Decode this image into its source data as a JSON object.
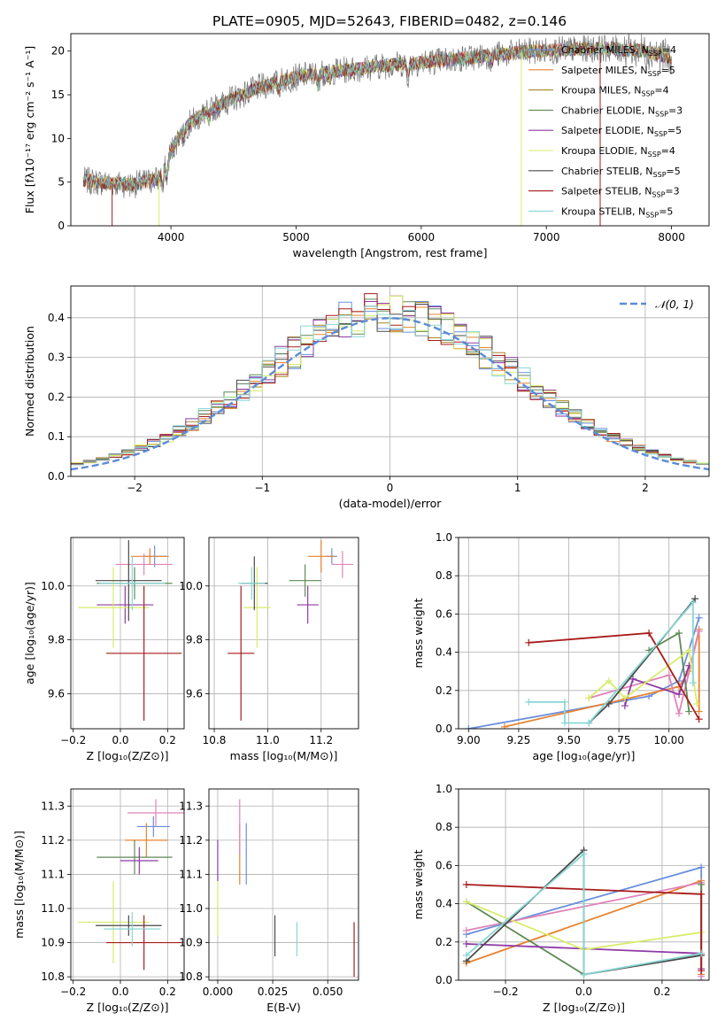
{
  "figure_title": "PLATE=0905, MJD=52643, FIBERID=0482, z=0.146",
  "colors": {
    "Chabrier MILES": "#6a8fdc",
    "Salpeter MILES": "#e8832f",
    "Kroupa MILES": "#a88a25",
    "Chabrier ELODIE": "#5e8a56",
    "Salpeter ELODIE": "#8f3aa6",
    "Kroupa ELODIE": "#d8ec6a",
    "Chabrier STELIB": "#4a4a4a",
    "Salpeter STELIB": "#a81b1b",
    "Kroupa STELIB": "#8ad6d6",
    "Kroupa MILES w": "#e084b8",
    "gauss": "#5b8bd8"
  },
  "chart_data": [
    {
      "id": "spectrum",
      "type": "line",
      "title": "PLATE=0905, MJD=52643, FIBERID=0482, z=0.146",
      "xlabel": "wavelength [Angstrom, rest frame]",
      "ylabel": "Flux [fλ10⁻¹⁷ erg cm⁻² s⁻¹ A⁻¹]",
      "xlim": [
        3200,
        8300
      ],
      "ylim": [
        0,
        22
      ],
      "xticks": [
        4000,
        5000,
        6000,
        7000,
        8000
      ],
      "yticks": [
        0,
        5,
        10,
        15,
        20
      ],
      "legend_position": "top-right",
      "series": [
        {
          "name": "Chabrier MILES, N_SSP=4",
          "label_main": "Chabrier MILES, N",
          "label_sub": "SSP",
          "label_tail": "=4"
        },
        {
          "name": "Salpeter MILES, N_SSP=5",
          "label_main": "Salpeter MILES, N",
          "label_sub": "SSP",
          "label_tail": "=5"
        },
        {
          "name": "Kroupa MILES, N_SSP=4",
          "label_main": "Kroupa MILES, N",
          "label_sub": "SSP",
          "label_tail": "=4"
        },
        {
          "name": "Chabrier ELODIE, N_SSP=3",
          "label_main": "Chabrier ELODIE, N",
          "label_sub": "SSP",
          "label_tail": "=3"
        },
        {
          "name": "Salpeter ELODIE, N_SSP=5",
          "label_main": "Salpeter ELODIE, N",
          "label_sub": "SSP",
          "label_tail": "=5"
        },
        {
          "name": "Kroupa ELODIE, N_SSP=4",
          "label_main": "Kroupa ELODIE, N",
          "label_sub": "SSP",
          "label_tail": "=4"
        },
        {
          "name": "Chabrier STELIB, N_SSP=5",
          "label_main": "Chabrier STELIB, N",
          "label_sub": "SSP",
          "label_tail": "=5"
        },
        {
          "name": "Salpeter STELIB, N_SSP=3",
          "label_main": "Salpeter STELIB, N",
          "label_sub": "SSP",
          "label_tail": "=3"
        },
        {
          "name": "Kroupa STELIB, N_SSP=5",
          "label_main": "Kroupa STELIB, N",
          "label_sub": "SSP",
          "label_tail": "=5"
        }
      ],
      "continuum": {
        "x": [
          3300,
          3500,
          3700,
          3900,
          4000,
          4100,
          4300,
          4500,
          4700,
          4900,
          5100,
          5300,
          5500,
          5800,
          6000,
          6300,
          6600,
          6900,
          7200,
          7500,
          7800,
          8000
        ],
        "y": [
          5.2,
          4.9,
          4.7,
          5.4,
          8.5,
          11.2,
          13.2,
          14.6,
          15.8,
          16.7,
          17.3,
          17.7,
          18.0,
          18.5,
          18.7,
          19.1,
          19.6,
          20.0,
          20.2,
          20.3,
          20.0,
          19.2
        ]
      },
      "absorption_lines": [
        {
          "x": 3934,
          "depth": 2.0
        },
        {
          "x": 3968,
          "depth": 1.8
        },
        {
          "x": 4101,
          "depth": 1.0
        },
        {
          "x": 4304,
          "depth": 1.2
        },
        {
          "x": 4861,
          "depth": 0.8
        },
        {
          "x": 5175,
          "depth": 1.4
        },
        {
          "x": 5270,
          "depth": 0.8
        },
        {
          "x": 5894,
          "depth": 1.4
        },
        {
          "x": 6563,
          "depth": 0.6
        }
      ],
      "drops": [
        {
          "x": 3530
        },
        {
          "x": 3905
        },
        {
          "x": 6800
        },
        {
          "x": 7430
        }
      ]
    },
    {
      "id": "residuals",
      "type": "histogram",
      "xlabel": "(data-model)/error",
      "ylabel": "Normed distribution",
      "xlim": [
        -2.5,
        2.5
      ],
      "ylim": [
        0,
        0.48
      ],
      "xticks": [
        -2,
        -1,
        0,
        1,
        2
      ],
      "xtick_labels": [
        "−2",
        "−1",
        "0",
        "1",
        "2"
      ],
      "yticks": [
        0.0,
        0.1,
        0.2,
        0.3,
        0.4
      ],
      "bin_width": 0.1,
      "legend_label": "𝒩(0, 1)",
      "legend_position": "top-right",
      "gaussian": {
        "mean": 0,
        "sigma": 1
      }
    },
    {
      "id": "z-age",
      "type": "errorbar",
      "xlabel": "Z [log₁₀(Z/Z⊙)]",
      "ylabel": "age  [log₁₀(age/yr)]",
      "xlim": [
        -0.21,
        0.27
      ],
      "ylim": [
        9.47,
        10.18
      ],
      "xticks": [
        -0.2,
        0.0,
        0.2
      ],
      "xtick_labels": [
        "−0.2",
        "0.0",
        "0.2"
      ],
      "yticks": [
        9.6,
        9.8,
        10.0
      ],
      "points": [
        {
          "series": "Chabrier MILES",
          "x": 0.145,
          "y": 10.11,
          "xerr": 0.05,
          "yerr": 0.04
        },
        {
          "series": "Salpeter MILES",
          "x": 0.125,
          "y": 10.11,
          "xerr": 0.08,
          "yerr": 0.03
        },
        {
          "series": "Kroupa MILES w",
          "x": 0.1,
          "y": 10.08,
          "xerr": 0.12,
          "yerr": 0.04
        },
        {
          "series": "Chabrier ELODIE",
          "x": 0.06,
          "y": 10.01,
          "xerr": 0.16,
          "yerr": 0.06
        },
        {
          "series": "Salpeter ELODIE",
          "x": 0.02,
          "y": 9.93,
          "xerr": 0.12,
          "yerr": 0.07
        },
        {
          "series": "Kroupa ELODIE",
          "x": -0.03,
          "y": 9.92,
          "xerr": 0.15,
          "yerr": 0.15
        },
        {
          "series": "Chabrier STELIB",
          "x": 0.035,
          "y": 10.02,
          "xerr": 0.14,
          "yerr": 0.15
        },
        {
          "series": "Salpeter STELIB",
          "x": 0.1,
          "y": 9.75,
          "xerr": 0.16,
          "yerr": 0.25
        },
        {
          "series": "Kroupa STELIB",
          "x": 0.05,
          "y": 10.01,
          "xerr": 0.14,
          "yerr": 0.1
        }
      ]
    },
    {
      "id": "mass-age",
      "type": "errorbar",
      "xlabel": "mass [log₁₀(M/M⊙)]",
      "ylabel": "",
      "xlim": [
        10.78,
        11.34
      ],
      "ylim": [
        9.47,
        10.18
      ],
      "xticks": [
        10.8,
        11.0,
        11.2
      ],
      "xtick_labels": [
        "10.8",
        "11.0",
        "11.2"
      ],
      "yticks": [
        9.6,
        9.8,
        10.0
      ],
      "points": [
        {
          "series": "Chabrier MILES",
          "x": 11.24,
          "y": 10.11,
          "xerr": 0.02,
          "yerr": 0.03
        },
        {
          "series": "Salpeter MILES",
          "x": 11.2,
          "y": 10.11,
          "xerr": 0.05,
          "yerr": 0.06
        },
        {
          "series": "Kroupa MILES w",
          "x": 11.28,
          "y": 10.08,
          "xerr": 0.04,
          "yerr": 0.05
        },
        {
          "series": "Chabrier ELODIE",
          "x": 11.14,
          "y": 10.02,
          "xerr": 0.06,
          "yerr": 0.06
        },
        {
          "series": "Salpeter ELODIE",
          "x": 11.15,
          "y": 9.93,
          "xerr": 0.04,
          "yerr": 0.07
        },
        {
          "series": "Kroupa ELODIE",
          "x": 10.96,
          "y": 9.92,
          "xerr": 0.05,
          "yerr": 0.15
        },
        {
          "series": "Chabrier STELIB",
          "x": 10.95,
          "y": 10.01,
          "xerr": 0.05,
          "yerr": 0.1
        },
        {
          "series": "Salpeter STELIB",
          "x": 10.9,
          "y": 9.75,
          "xerr": 0.05,
          "yerr": 0.25
        },
        {
          "series": "Kroupa STELIB",
          "x": 10.94,
          "y": 10.01,
          "xerr": 0.05,
          "yerr": 0.06
        }
      ]
    },
    {
      "id": "age-weight",
      "type": "line",
      "xlabel": "age  [log₁₀(age/yr)]",
      "ylabel": "mass weight",
      "xlim": [
        8.95,
        10.2
      ],
      "ylim": [
        0,
        1.0
      ],
      "xticks": [
        9.0,
        9.25,
        9.5,
        9.75,
        10.0
      ],
      "xtick_labels": [
        "9.00",
        "9.25",
        "9.50",
        "9.75",
        "10.00"
      ],
      "yticks": [
        0.0,
        0.2,
        0.4,
        0.6,
        0.8,
        1.0
      ],
      "series": [
        {
          "series": "Chabrier MILES",
          "x": [
            9.0,
            9.9,
            10.05,
            10.15
          ],
          "y": [
            0.0,
            0.17,
            0.25,
            0.58
          ]
        },
        {
          "series": "Salpeter MILES",
          "x": [
            9.18,
            10.05,
            10.1,
            10.15,
            10.15
          ],
          "y": [
            0.01,
            0.22,
            0.3,
            0.52,
            0.09
          ]
        },
        {
          "series": "Kroupa MILES w",
          "x": [
            9.6,
            10.0,
            10.05,
            10.15
          ],
          "y": [
            0.16,
            0.28,
            0.08,
            0.51
          ]
        },
        {
          "series": "Chabrier ELODIE",
          "x": [
            9.9,
            10.05,
            10.1
          ],
          "y": [
            0.41,
            0.5,
            0.09
          ]
        },
        {
          "series": "Salpeter ELODIE",
          "x": [
            9.78,
            9.82,
            10.05,
            10.1
          ],
          "y": [
            0.12,
            0.26,
            0.18,
            0.33
          ]
        },
        {
          "series": "Kroupa ELODIE",
          "x": [
            9.6,
            9.7,
            9.78,
            10.1,
            10.14
          ],
          "y": [
            0.16,
            0.25,
            0.16,
            0.41,
            0.13
          ]
        },
        {
          "series": "Chabrier STELIB",
          "x": [
            9.6,
            9.7,
            10.13
          ],
          "y": [
            0.03,
            0.13,
            0.68
          ]
        },
        {
          "series": "Salpeter STELIB",
          "x": [
            9.3,
            9.9,
            10.15
          ],
          "y": [
            0.45,
            0.5,
            0.05
          ]
        },
        {
          "series": "Kroupa STELIB",
          "x": [
            9.3,
            9.48,
            9.48,
            9.6,
            9.6,
            10.12,
            10.12
          ],
          "y": [
            0.14,
            0.14,
            0.03,
            0.03,
            0.03,
            0.66,
            0.24
          ]
        }
      ]
    },
    {
      "id": "z-mass",
      "type": "errorbar",
      "xlabel": "Z [log₁₀(Z/Z⊙)]",
      "ylabel": "mass [log₁₀(M/M⊙)]",
      "xlim": [
        -0.21,
        0.27
      ],
      "ylim": [
        10.79,
        11.35
      ],
      "xticks": [
        -0.2,
        0.0,
        0.2
      ],
      "xtick_labels": [
        "−0.2",
        "0.0",
        "0.2"
      ],
      "yticks": [
        10.8,
        10.9,
        11.0,
        11.1,
        11.2,
        11.3
      ],
      "points": [
        {
          "series": "Chabrier MILES",
          "x": 0.14,
          "y": 11.24,
          "xerr": 0.07,
          "yerr": 0.03
        },
        {
          "series": "Salpeter MILES",
          "x": 0.11,
          "y": 11.2,
          "xerr": 0.09,
          "yerr": 0.05
        },
        {
          "series": "Kroupa MILES w",
          "x": 0.15,
          "y": 11.28,
          "xerr": 0.12,
          "yerr": 0.04
        },
        {
          "series": "Chabrier ELODIE",
          "x": 0.06,
          "y": 11.15,
          "xerr": 0.16,
          "yerr": 0.05
        },
        {
          "series": "Salpeter ELODIE",
          "x": 0.08,
          "y": 11.14,
          "xerr": 0.08,
          "yerr": 0.04
        },
        {
          "series": "Kroupa ELODIE",
          "x": -0.03,
          "y": 10.96,
          "xerr": 0.15,
          "yerr": 0.12
        },
        {
          "series": "Chabrier STELIB",
          "x": 0.035,
          "y": 10.95,
          "xerr": 0.14,
          "yerr": 0.03
        },
        {
          "series": "Salpeter STELIB",
          "x": 0.1,
          "y": 10.9,
          "xerr": 0.16,
          "yerr": 0.08
        },
        {
          "series": "Kroupa STELIB",
          "x": 0.05,
          "y": 10.94,
          "xerr": 0.12,
          "yerr": 0.05
        }
      ]
    },
    {
      "id": "ebv-mass",
      "type": "errorbar",
      "xlabel": "E(B-V)",
      "ylabel": "",
      "xlim": [
        -0.004,
        0.064
      ],
      "ylim": [
        10.79,
        11.35
      ],
      "xticks": [
        0.0,
        0.025,
        0.05
      ],
      "xtick_labels": [
        "0.000",
        "0.025",
        "0.050"
      ],
      "yticks": [
        10.8,
        10.9,
        11.0,
        11.1,
        11.2,
        11.3
      ],
      "points": [
        {
          "series": "Chabrier MILES",
          "x": 0.013,
          "y": 11.16,
          "xerr": 0,
          "yerr": 0.09
        },
        {
          "series": "Salpeter MILES",
          "x": 0.01,
          "y": 11.16,
          "xerr": 0,
          "yerr": 0.09
        },
        {
          "series": "Kroupa MILES w",
          "x": 0.01,
          "y": 11.24,
          "xerr": 0,
          "yerr": 0.08
        },
        {
          "series": "Salpeter ELODIE",
          "x": 0.0,
          "y": 11.14,
          "xerr": 0,
          "yerr": 0.06
        },
        {
          "series": "Kroupa ELODIE",
          "x": 0.0,
          "y": 11.0,
          "xerr": 0,
          "yerr": 0.08
        },
        {
          "series": "Chabrier STELIB",
          "x": 0.026,
          "y": 10.92,
          "xerr": 0,
          "yerr": 0.06
        },
        {
          "series": "Kroupa STELIB",
          "x": 0.036,
          "y": 10.91,
          "xerr": 0,
          "yerr": 0.05
        },
        {
          "series": "Salpeter STELIB",
          "x": 0.062,
          "y": 10.88,
          "xerr": 0,
          "yerr": 0.08
        }
      ]
    },
    {
      "id": "z-weight",
      "type": "line",
      "xlabel": "Z [log₁₀(Z/Z⊙)]",
      "ylabel": "mass weight",
      "xlim": [
        -0.32,
        0.32
      ],
      "ylim": [
        0,
        1.0
      ],
      "xticks": [
        -0.2,
        0.0,
        0.2
      ],
      "xtick_labels": [
        "−0.2",
        "0.0",
        "0.2"
      ],
      "yticks": [
        0.0,
        0.2,
        0.4,
        0.6,
        0.8,
        1.0
      ],
      "series": [
        {
          "series": "Chabrier MILES",
          "x": [
            -0.3,
            0.3,
            0.3
          ],
          "y": [
            0.24,
            0.59,
            0.0
          ]
        },
        {
          "series": "Salpeter MILES",
          "x": [
            -0.3,
            0.3,
            0.3
          ],
          "y": [
            0.09,
            0.52,
            0.03
          ]
        },
        {
          "series": "Kroupa MILES w",
          "x": [
            -0.3,
            0.3,
            0.3
          ],
          "y": [
            0.26,
            0.51,
            0.02
          ]
        },
        {
          "series": "Chabrier ELODIE",
          "x": [
            -0.3,
            0.0,
            0.3,
            0.3
          ],
          "y": [
            0.41,
            0.03,
            0.13,
            0.5
          ]
        },
        {
          "series": "Salpeter ELODIE",
          "x": [
            -0.3,
            0.3,
            0.3
          ],
          "y": [
            0.19,
            0.14,
            0.06
          ]
        },
        {
          "series": "Kroupa ELODIE",
          "x": [
            -0.3,
            0.0,
            0.3
          ],
          "y": [
            0.41,
            0.16,
            0.25
          ]
        },
        {
          "series": "Chabrier STELIB",
          "x": [
            -0.3,
            0.0,
            0.0,
            0.3
          ],
          "y": [
            0.1,
            0.68,
            0.03,
            0.13
          ]
        },
        {
          "series": "Salpeter STELIB",
          "x": [
            -0.3,
            0.3,
            0.3
          ],
          "y": [
            0.5,
            0.45,
            0.05
          ]
        },
        {
          "series": "Kroupa STELIB",
          "x": [
            -0.3,
            0.0,
            0.0,
            0.3
          ],
          "y": [
            0.13,
            0.66,
            0.03,
            0.14
          ]
        }
      ]
    }
  ]
}
